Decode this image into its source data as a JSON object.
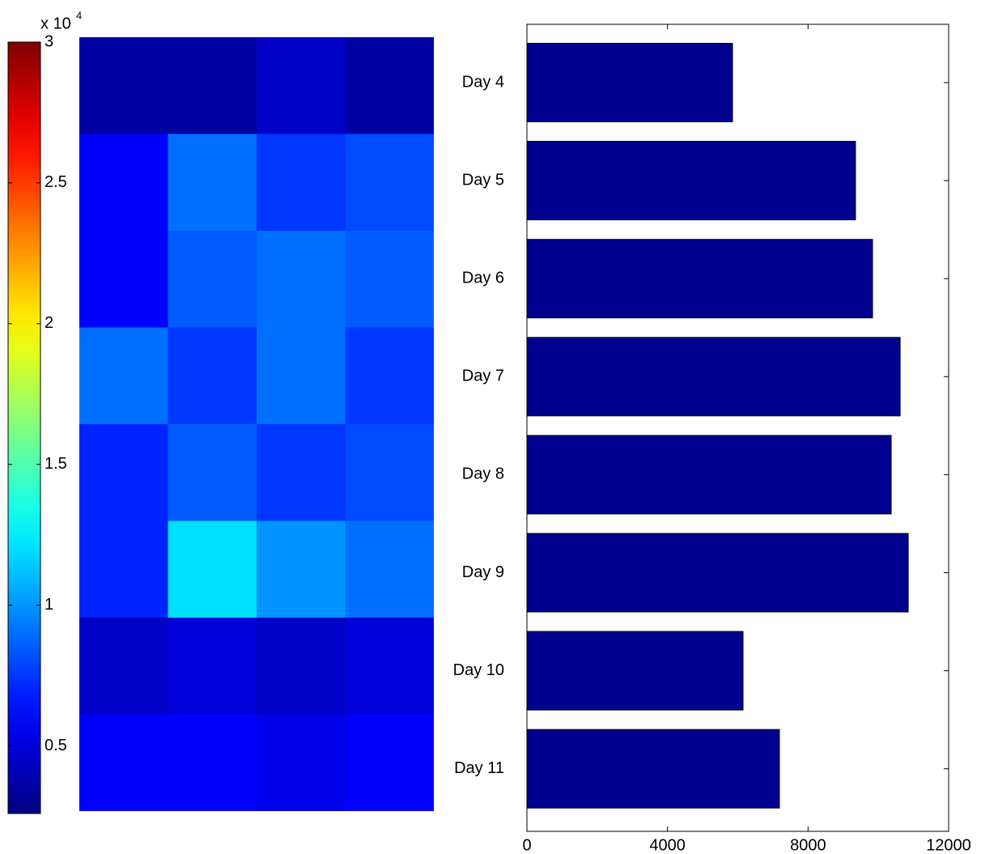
{
  "chart_data": [
    {
      "type": "heatmap",
      "colorbar_label": "x 10",
      "colorbar_exponent": "4",
      "clim": [
        0.26,
        3
      ],
      "cticks": [
        0.5,
        1,
        1.5,
        2,
        2.5,
        3
      ],
      "colormap": "jet",
      "values": [
        [
          0.35,
          0.35,
          0.45,
          0.35
        ],
        [
          0.6,
          0.9,
          0.75,
          0.8
        ],
        [
          0.6,
          0.85,
          0.9,
          0.85
        ],
        [
          0.9,
          0.75,
          0.9,
          0.75
        ],
        [
          0.7,
          0.85,
          0.75,
          0.8
        ],
        [
          0.7,
          1.2,
          1.0,
          0.9
        ],
        [
          0.45,
          0.5,
          0.45,
          0.5
        ],
        [
          0.6,
          0.6,
          0.55,
          0.6
        ]
      ]
    },
    {
      "type": "barh",
      "categories": [
        "Day 4",
        "Day 5",
        "Day 6",
        "Day 7",
        "Day 8",
        "Day 9",
        "Day 10",
        "Day 11"
      ],
      "values": [
        5850,
        9350,
        9835,
        10620,
        10365,
        10850,
        6150,
        7185
      ],
      "color": "#00008f",
      "xlim": [
        0,
        12000
      ],
      "xticks": [
        0,
        4000,
        8000,
        12000
      ]
    }
  ]
}
